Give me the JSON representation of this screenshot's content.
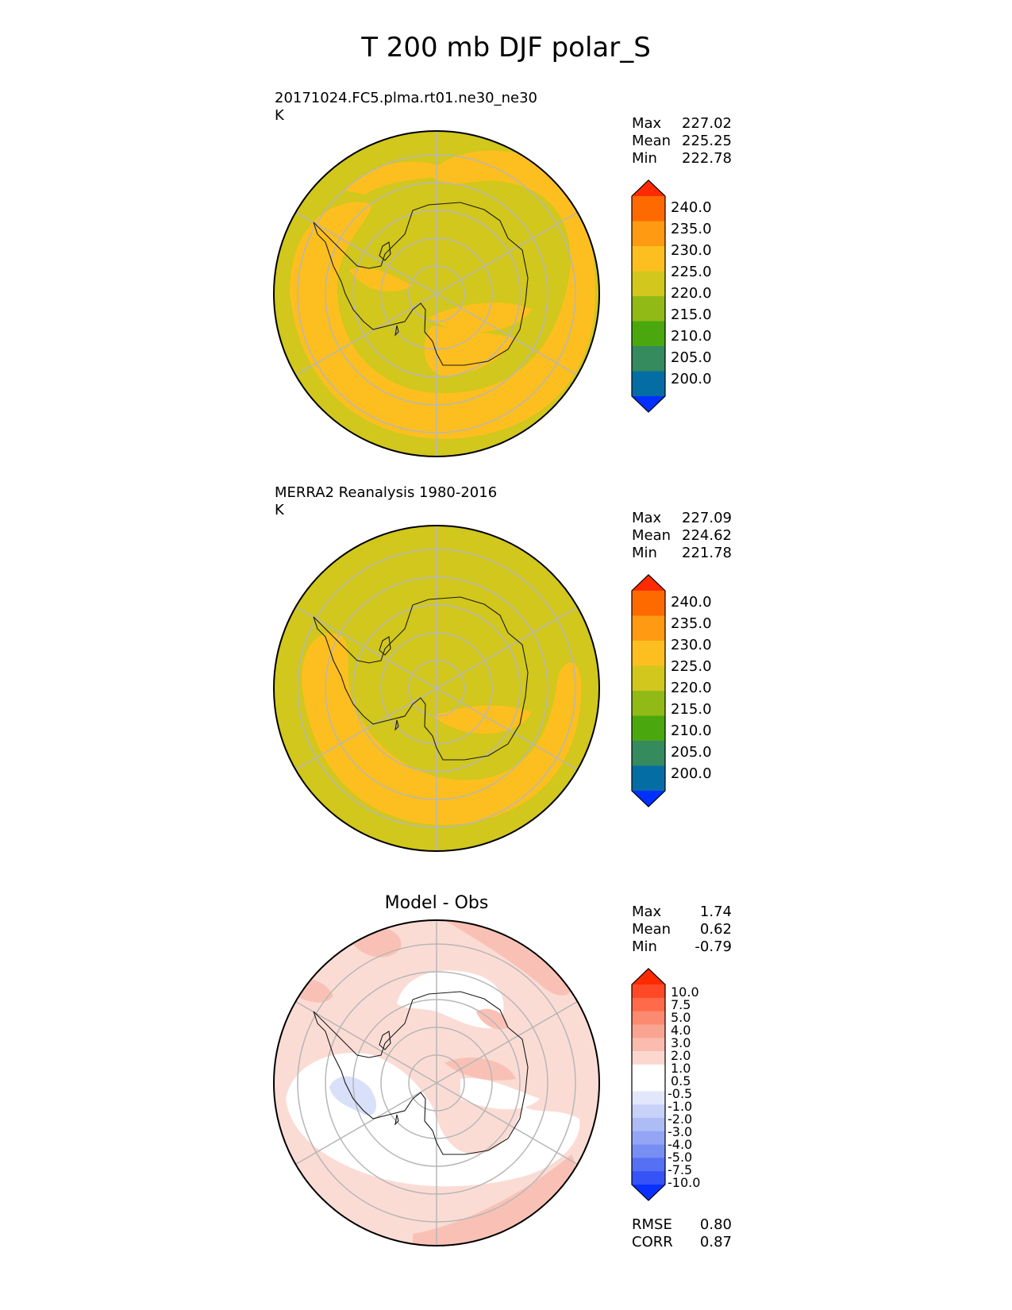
{
  "figure": {
    "title": "T 200 mb DJF polar_S"
  },
  "panels": [
    {
      "id": "test",
      "title_line1": "20171024.FC5.plma.rt01.ne30_ne30",
      "title_line2": "K",
      "stats": [
        {
          "label": "Max",
          "value": "227.02"
        },
        {
          "label": "Mean",
          "value": "225.25"
        },
        {
          "label": "Min",
          "value": "222.78"
        }
      ],
      "colorbar_ticks": [
        "240.0",
        "235.0",
        "230.0",
        "225.0",
        "220.0",
        "215.0",
        "210.0",
        "205.0",
        "200.0"
      ],
      "colors": {
        "background": "#d1c71d",
        "warm_band": "#fdbf1f"
      }
    },
    {
      "id": "ref",
      "title_line1": "MERRA2 Reanalysis 1980-2016",
      "title_line2": "K",
      "stats": [
        {
          "label": "Max",
          "value": "227.09"
        },
        {
          "label": "Mean",
          "value": "224.62"
        },
        {
          "label": "Min",
          "value": "221.78"
        }
      ],
      "colorbar_ticks": [
        "240.0",
        "235.0",
        "230.0",
        "225.0",
        "220.0",
        "215.0",
        "210.0",
        "205.0",
        "200.0"
      ],
      "colors": {
        "background": "#d1c71d",
        "warm_band": "#fdbf1f"
      }
    },
    {
      "id": "diff",
      "title": "Model - Obs",
      "stats": [
        {
          "label": "Max",
          "value": "1.74"
        },
        {
          "label": "Mean",
          "value": "0.62"
        },
        {
          "label": "Min",
          "value": "-0.79"
        }
      ],
      "colorbar_ticks": [
        "10.0",
        "7.5",
        "5.0",
        "4.0",
        "3.0",
        "2.0",
        "1.0",
        "0.5",
        "-0.5",
        "-1.0",
        "-2.0",
        "-3.0",
        "-4.0",
        "-5.0",
        "-7.5",
        "-10.0"
      ],
      "metrics": [
        {
          "label": "RMSE",
          "value": "0.80"
        },
        {
          "label": "CORR",
          "value": "0.87"
        }
      ],
      "colors": {
        "background": "#fbdcd5",
        "neutral": "#ffffff",
        "warm": "#f9c1b5",
        "cool": "#d9e0f9"
      }
    }
  ],
  "colormaps": {
    "absolute": [
      "#ff2a00",
      "#ff6a00",
      "#ff9a12",
      "#fdbf1f",
      "#d1c71d",
      "#91ba16",
      "#4aa80e",
      "#358a5e",
      "#046da3",
      "#0030ff"
    ],
    "difference": [
      "#ff2a00",
      "#ff4826",
      "#ff6a4a",
      "#fb8a70",
      "#f9a391",
      "#f9bcae",
      "#fbd7cf",
      "#ffffff",
      "#ffffff",
      "#e3e7fb",
      "#c8d1f8",
      "#aebcf6",
      "#93a5f4",
      "#778ef3",
      "#5670f4",
      "#3553f7",
      "#0a30ff"
    ]
  },
  "chart_data": [
    {
      "type": "heatmap",
      "projection": "south polar stereographic",
      "title": "20171024.FC5.plma.rt01.ne30_ne30",
      "units": "K",
      "max": 227.02,
      "mean": 225.25,
      "min": 222.78,
      "levels": [
        200,
        205,
        210,
        215,
        220,
        225,
        230,
        235,
        240
      ]
    },
    {
      "type": "heatmap",
      "projection": "south polar stereographic",
      "title": "MERRA2 Reanalysis 1980-2016",
      "units": "K",
      "max": 227.09,
      "mean": 224.62,
      "min": 221.78,
      "levels": [
        200,
        205,
        210,
        215,
        220,
        225,
        230,
        235,
        240
      ]
    },
    {
      "type": "heatmap",
      "projection": "south polar stereographic",
      "title": "Model - Obs",
      "max": 1.74,
      "mean": 0.62,
      "min": -0.79,
      "rmse": 0.8,
      "corr": 0.87,
      "levels": [
        -10.0,
        -7.5,
        -5.0,
        -4.0,
        -3.0,
        -2.0,
        -1.0,
        -0.5,
        0.5,
        1.0,
        2.0,
        3.0,
        4.0,
        5.0,
        7.5,
        10.0
      ]
    }
  ]
}
